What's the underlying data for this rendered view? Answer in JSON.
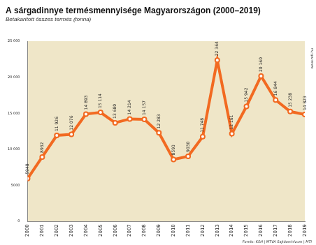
{
  "chart_data": {
    "type": "line",
    "title": "A sárgadinnye termésmennyisége Magyarországon (2000–2019)",
    "subtitle": "Betakarított összes termés (tonna)",
    "annotations": [
      "Forrás: KSH | MTVA Sajtóarchívum | MTI",
      "www.mti.hu"
    ],
    "categories": [
      "2000",
      "2001",
      "2002",
      "2003",
      "2004",
      "2005",
      "2006",
      "2007",
      "2008",
      "2009",
      "2010",
      "2011",
      "2012",
      "2013",
      "2014",
      "2015",
      "2016",
      "2017",
      "2018",
      "2019"
    ],
    "values": [
      5948,
      8932,
      11926,
      12076,
      14893,
      15114,
      13680,
      14214,
      14157,
      12283,
      8593,
      9030,
      11748,
      22364,
      12161,
      15942,
      20160,
      16844,
      15238,
      14823
    ],
    "value_labels": [
      "5948",
      "8932",
      "11 926",
      "12 076",
      "14 893",
      "15 114",
      "13 680",
      "14 214",
      "14 157",
      "12 283",
      "8593",
      "9030",
      "11 748",
      "22 364",
      "12 161",
      "15 942",
      "20 160",
      "16 844",
      "15 238",
      "14 823"
    ],
    "color": "#f26a21",
    "marker": "circle",
    "line_style": "solid",
    "data_labels": true,
    "grid": false,
    "ylim": [
      0,
      25000
    ],
    "yticks": [
      0,
      5000,
      {
        "value": 10000,
        "label": "10 000"
      },
      {
        "value": 15000,
        "label": "15 000"
      },
      {
        "value": 20000,
        "label": "20 000"
      },
      {
        "value": 25000,
        "label": "25 000"
      }
    ]
  }
}
